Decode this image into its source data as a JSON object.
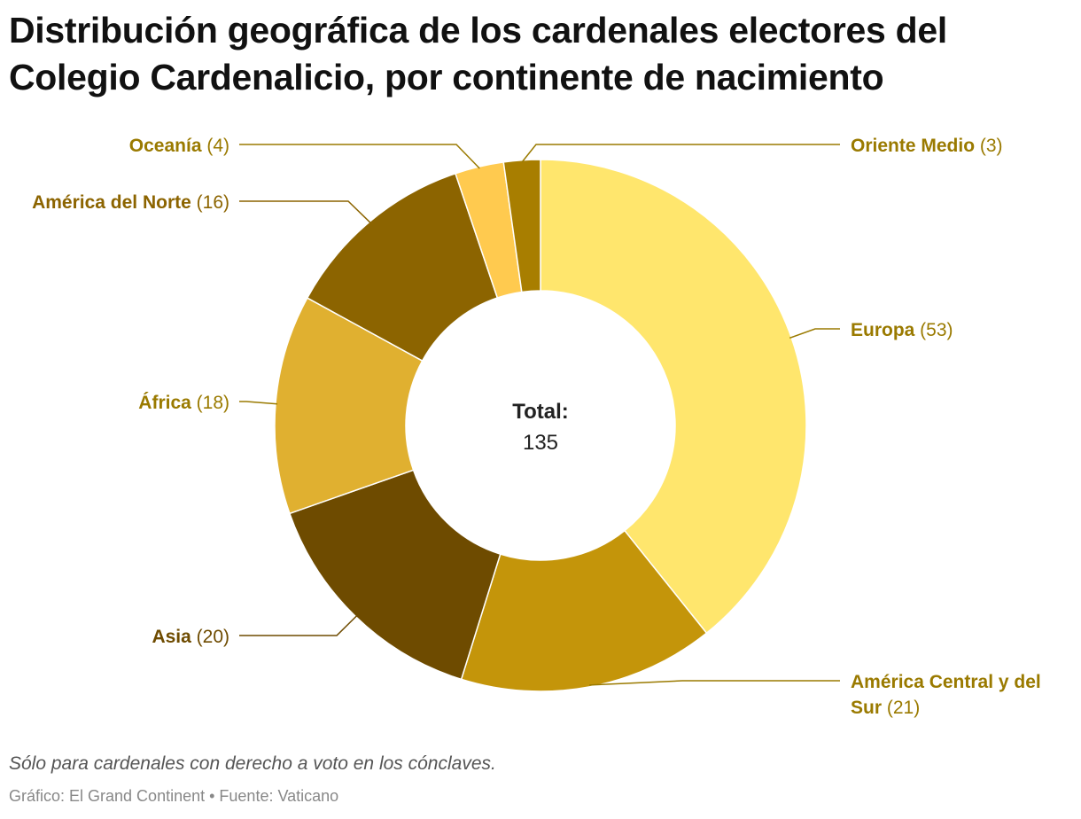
{
  "title": "Distribución geográfica de los cardenales electores del Colegio Cardenalicio, por continente de nacimiento",
  "chart_data": {
    "type": "pie",
    "donut": true,
    "center_label": "Total:",
    "total": "135",
    "slices": [
      {
        "id": "europa",
        "name": "Europa",
        "value": 53,
        "display": "(53)",
        "color": "#FFE66D",
        "label_color": "#9A7A00",
        "label_side": "right"
      },
      {
        "id": "america-central-sur",
        "name": "América Central y del Sur",
        "name_line1": "América Central y del",
        "name_line2": "Sur",
        "value": 21,
        "display": "(21)",
        "color": "#C4950A",
        "label_color": "#9A7A00",
        "label_side": "right"
      },
      {
        "id": "asia",
        "name": "Asia",
        "value": 20,
        "display": "(20)",
        "color": "#6E4B00",
        "label_color": "#6E4B00",
        "label_side": "left"
      },
      {
        "id": "africa",
        "name": "África",
        "value": 18,
        "display": "(18)",
        "color": "#E0B030",
        "label_color": "#9A7A00",
        "label_side": "left"
      },
      {
        "id": "america-norte",
        "name": "América del Norte",
        "value": 16,
        "display": "(16)",
        "color": "#8C6400",
        "label_color": "#8C6400",
        "label_side": "left"
      },
      {
        "id": "oceania",
        "name": "Oceanía",
        "value": 4,
        "display": "(4)",
        "color": "#FFCA4F",
        "label_color": "#9A7A00",
        "label_side": "left"
      },
      {
        "id": "oriente-medio",
        "name": "Oriente Medio",
        "value": 3,
        "display": "(3)",
        "color": "#A87E00",
        "label_color": "#9A7A00",
        "label_side": "right"
      }
    ]
  },
  "footer": {
    "note": "Sólo para cardenales con derecho a voto en los cónclaves.",
    "credit": "Gráfico: El Grand Continent • Fuente: Vaticano"
  }
}
